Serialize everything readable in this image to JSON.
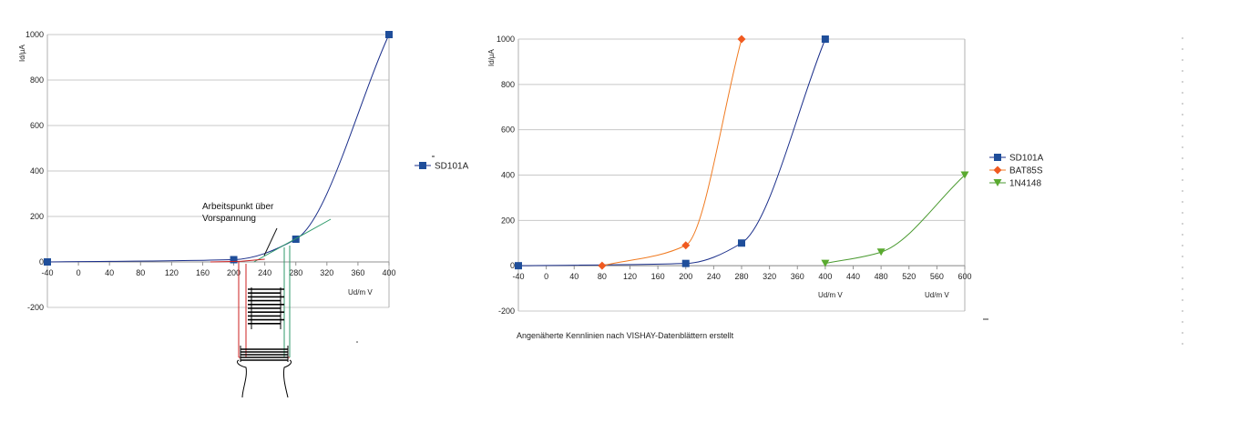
{
  "colors": {
    "SD101A": "#1a2e8a",
    "BAT85S": "#f07a20",
    "1N4148": "#4a9a30",
    "marker_SD101A": "#1f4e9a",
    "marker_BAT85S": "#f05a20",
    "marker_1N4148": "#5aaa30",
    "tangent": "#2e9a6a",
    "working_line": "#cc2222",
    "sketch": "#000000"
  },
  "chart_data": [
    {
      "type": "scatter",
      "ylabel": "Id/µA",
      "xlabel": "Ud/m V",
      "xlim": [
        -40,
        400
      ],
      "ylim": [
        -200,
        1000
      ],
      "xticks": [
        -40,
        0,
        40,
        80,
        120,
        160,
        200,
        240,
        280,
        320,
        360,
        400
      ],
      "yticks": [
        -200,
        0,
        200,
        400,
        600,
        800,
        1000
      ],
      "grid": "horizontal",
      "legend_position": "right",
      "series": [
        {
          "name": "SD101A",
          "marker": "square",
          "x": [
            -40,
            200,
            280,
            400
          ],
          "y": [
            0,
            10,
            100,
            1000
          ]
        }
      ],
      "annotations": [
        {
          "text": "Arbeitspunkt über"
        },
        {
          "text": "Vorspannung"
        }
      ]
    },
    {
      "type": "scatter",
      "ylabel": "Id/µA",
      "xlabel": "Ud/m V",
      "xlim": [
        -40,
        600
      ],
      "ylim": [
        -200,
        1000
      ],
      "xticks": [
        -40,
        0,
        40,
        80,
        120,
        160,
        200,
        240,
        280,
        320,
        360,
        400,
        440,
        480,
        520,
        560,
        600
      ],
      "yticks": [
        -200,
        0,
        200,
        400,
        600,
        800,
        1000
      ],
      "grid": "horizontal",
      "legend_position": "right",
      "series": [
        {
          "name": "SD101A",
          "marker": "square",
          "x": [
            -40,
            200,
            280,
            400
          ],
          "y": [
            0,
            10,
            100,
            1000
          ]
        },
        {
          "name": "BAT85S",
          "marker": "diamond",
          "x": [
            80,
            200,
            280
          ],
          "y": [
            0,
            90,
            1000
          ]
        },
        {
          "name": "1N4148",
          "marker": "triangle-down",
          "x": [
            400,
            480,
            600
          ],
          "y": [
            10,
            60,
            400
          ]
        }
      ],
      "caption": "Angenäherte Kennlinien nach VISHAY-Datenblättern erstellt"
    }
  ]
}
